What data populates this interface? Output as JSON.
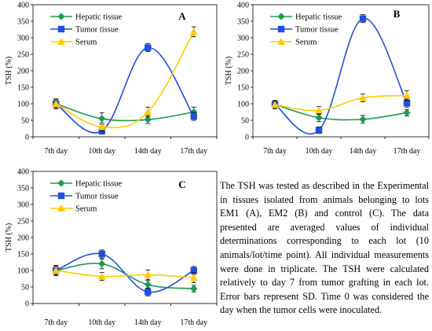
{
  "chart_data": [
    {
      "type": "line",
      "title": "A",
      "ylabel": "TSH (%)",
      "xlabel": "",
      "categories": [
        "7th day",
        "10th day",
        "14th day",
        "17th day"
      ],
      "ylim": [
        0,
        400
      ],
      "yticks": [
        0,
        50,
        100,
        150,
        200,
        250,
        300,
        350,
        400
      ],
      "legend_position": "top-left",
      "grid": false,
      "series": [
        {
          "name": "Hepatic tissue",
          "color": "#1a9a50",
          "marker": "diamond",
          "values": [
            100,
            55,
            52,
            75
          ],
          "errors": [
            15,
            18,
            12,
            15
          ]
        },
        {
          "name": "Tumor tissue",
          "color": "#1f4fe0",
          "marker": "square",
          "values": [
            100,
            18,
            270,
            62
          ],
          "errors": [
            12,
            10,
            12,
            12
          ]
        },
        {
          "name": "Serum",
          "color": "#ffcc00",
          "marker": "triangle",
          "values": [
            100,
            30,
            75,
            318
          ],
          "errors": [
            12,
            12,
            15,
            15
          ]
        }
      ]
    },
    {
      "type": "line",
      "title": "B",
      "ylabel": "TSH (%)",
      "xlabel": "",
      "categories": [
        "7th day",
        "10th day",
        "14th day",
        "17th day"
      ],
      "ylim": [
        0,
        400
      ],
      "yticks": [
        0,
        50,
        100,
        150,
        200,
        250,
        300,
        350,
        400
      ],
      "legend_position": "top-left",
      "grid": false,
      "series": [
        {
          "name": "Hepatic tissue",
          "color": "#1a9a50",
          "marker": "diamond",
          "values": [
            98,
            58,
            53,
            73
          ],
          "errors": [
            12,
            12,
            12,
            10
          ]
        },
        {
          "name": "Tumor tissue",
          "color": "#1f4fe0",
          "marker": "square",
          "values": [
            98,
            20,
            358,
            102
          ],
          "errors": [
            12,
            10,
            12,
            12
          ]
        },
        {
          "name": "Serum",
          "color": "#ffcc00",
          "marker": "triangle",
          "values": [
            97,
            80,
            118,
            125
          ],
          "errors": [
            12,
            12,
            12,
            15
          ]
        }
      ]
    },
    {
      "type": "line",
      "title": "C",
      "ylabel": "TSH (%)",
      "xlabel": "",
      "categories": [
        "7th day",
        "10th day",
        "14th day",
        "17th day"
      ],
      "ylim": [
        0,
        400
      ],
      "yticks": [
        0,
        50,
        100,
        150,
        200,
        250,
        300,
        350,
        400
      ],
      "legend_position": "top-left",
      "grid": false,
      "series": [
        {
          "name": "Hepatic tissue",
          "color": "#1a9a50",
          "marker": "diamond",
          "values": [
            100,
            120,
            57,
            45
          ],
          "errors": [
            15,
            15,
            12,
            10
          ]
        },
        {
          "name": "Tumor tissue",
          "color": "#1f4fe0",
          "marker": "square",
          "values": [
            100,
            150,
            35,
            100
          ],
          "errors": [
            12,
            12,
            12,
            12
          ]
        },
        {
          "name": "Serum",
          "color": "#ffcc00",
          "marker": "triangle",
          "values": [
            100,
            82,
            87,
            78
          ],
          "errors": [
            15,
            12,
            15,
            15
          ]
        }
      ]
    }
  ],
  "caption": "The TSH was tested as described in the Experimental in tissues isolated from animals belonging to lots EM1 (A), EM2 (B) and control (C). The data presented are averaged values of individual determinations corresponding to each lot (10 animals/lot/time point). All individual measurements were done in triplicate. The TSH were calculated relatively to day 7 from tumor grafting in each lot. Error bars represent SD. Time 0 was considered the day when the tumor cells were inoculated."
}
